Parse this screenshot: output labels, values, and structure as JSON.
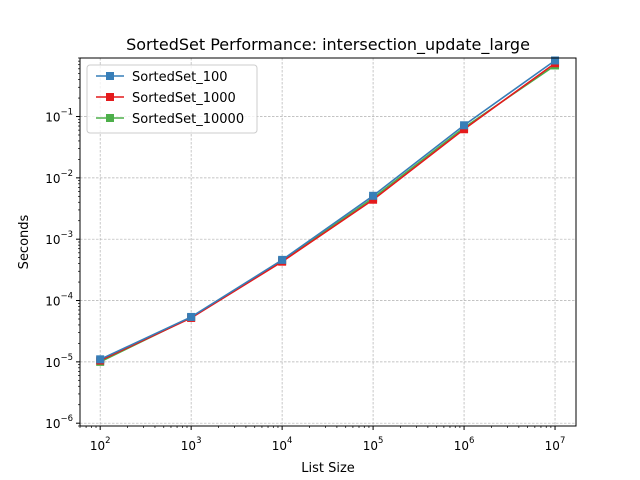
{
  "chart_data": {
    "type": "line",
    "title": "SortedSet Performance: intersection_update_large",
    "xlabel": "List Size",
    "ylabel": "Seconds",
    "x_scale": "log",
    "y_scale": "log",
    "x": [
      100,
      1000,
      10000,
      100000,
      1000000,
      10000000
    ],
    "xlim": [
      60,
      17000000
    ],
    "ylim": [
      9e-07,
      0.9
    ],
    "x_ticks": [
      {
        "base": "10",
        "exp": "2",
        "value": 100
      },
      {
        "base": "10",
        "exp": "3",
        "value": 1000
      },
      {
        "base": "10",
        "exp": "4",
        "value": 10000
      },
      {
        "base": "10",
        "exp": "5",
        "value": 100000
      },
      {
        "base": "10",
        "exp": "6",
        "value": 1000000
      },
      {
        "base": "10",
        "exp": "7",
        "value": 10000000
      }
    ],
    "y_ticks": [
      {
        "base": "10",
        "exp": "−6",
        "value": 1e-06
      },
      {
        "base": "10",
        "exp": "−5",
        "value": 1e-05
      },
      {
        "base": "10",
        "exp": "−4",
        "value": 0.0001
      },
      {
        "base": "10",
        "exp": "−3",
        "value": 0.001
      },
      {
        "base": "10",
        "exp": "−2",
        "value": 0.01
      },
      {
        "base": "10",
        "exp": "−1",
        "value": 0.1
      }
    ],
    "grid": true,
    "legend_position": "upper-left",
    "series": [
      {
        "name": "SortedSet_100",
        "color": "#377eb8",
        "marker": "square",
        "values": [
          1.1e-05,
          5.4e-05,
          0.00046,
          0.0051,
          0.072,
          0.82
        ]
      },
      {
        "name": "SortedSet_1000",
        "color": "#e41a1c",
        "marker": "square",
        "values": [
          1.05e-05,
          5.2e-05,
          0.00043,
          0.0044,
          0.062,
          0.74
        ]
      },
      {
        "name": "SortedSet_10000",
        "color": "#4daf4a",
        "marker": "square",
        "values": [
          1e-05,
          5.3e-05,
          0.00044,
          0.0047,
          0.066,
          0.68
        ]
      }
    ]
  }
}
